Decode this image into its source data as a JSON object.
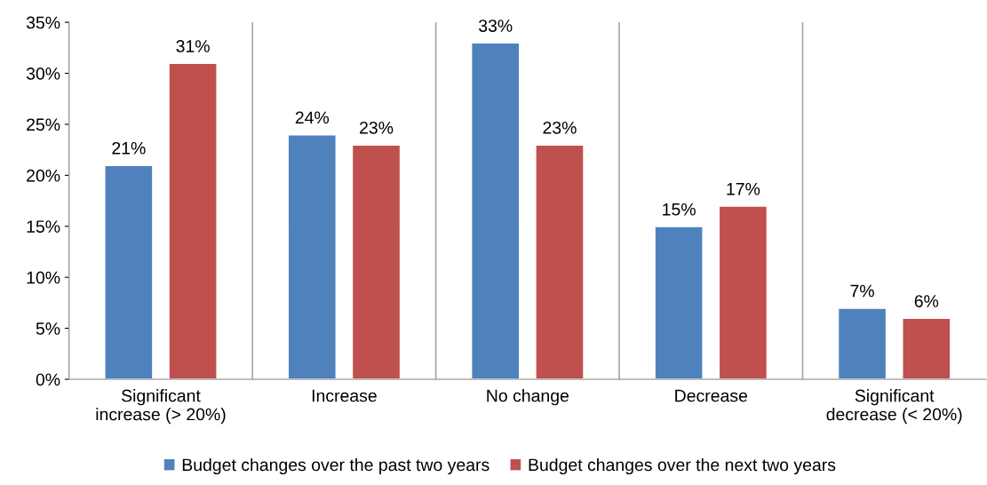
{
  "chart_data": {
    "type": "bar",
    "categories": [
      "Significant\nincrease (> 20%)",
      "Increase",
      "No change",
      "Decrease",
      "Significant\ndecrease (< 20%)"
    ],
    "series": [
      {
        "name": "Budget changes over the past two years",
        "color": "#4f81bd",
        "values": [
          21,
          24,
          33,
          15,
          7
        ],
        "value_labels": [
          "21%",
          "24%",
          "33%",
          "15%",
          "7%"
        ]
      },
      {
        "name": "Budget changes over the next two years",
        "color": "#c0504d",
        "values": [
          31,
          23,
          23,
          17,
          6
        ],
        "value_labels": [
          "31%",
          "23%",
          "23%",
          "17%",
          "6%"
        ]
      }
    ],
    "ylim": [
      0,
      35
    ],
    "yticks": [
      {
        "value": 0,
        "label": "0%"
      },
      {
        "value": 5,
        "label": "5%"
      },
      {
        "value": 10,
        "label": "10%"
      },
      {
        "value": 15,
        "label": "15%"
      },
      {
        "value": 20,
        "label": "20%"
      },
      {
        "value": 25,
        "label": "25%"
      },
      {
        "value": 30,
        "label": "30%"
      },
      {
        "value": 35,
        "label": "35%"
      }
    ],
    "grid": "x",
    "legend": "bottom"
  }
}
